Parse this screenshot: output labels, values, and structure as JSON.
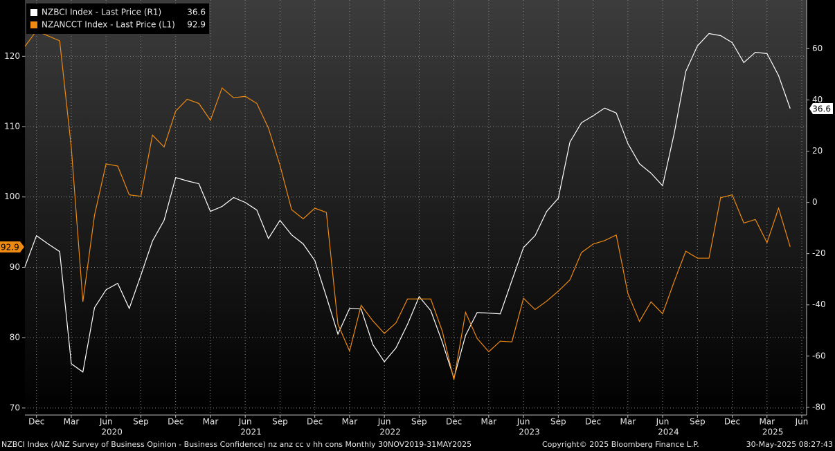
{
  "chart_data": {
    "type": "line",
    "x": [
      "2019-11",
      "2019-12",
      "2020-01",
      "2020-02",
      "2020-03",
      "2020-04",
      "2020-05",
      "2020-06",
      "2020-07",
      "2020-08",
      "2020-09",
      "2020-10",
      "2020-11",
      "2020-12",
      "2021-01",
      "2021-02",
      "2021-03",
      "2021-04",
      "2021-05",
      "2021-06",
      "2021-07",
      "2021-08",
      "2021-09",
      "2021-10",
      "2021-11",
      "2021-12",
      "2022-01",
      "2022-02",
      "2022-03",
      "2022-04",
      "2022-05",
      "2022-06",
      "2022-07",
      "2022-08",
      "2022-09",
      "2022-10",
      "2022-11",
      "2022-12",
      "2023-01",
      "2023-02",
      "2023-03",
      "2023-04",
      "2023-05",
      "2023-06",
      "2023-07",
      "2023-08",
      "2023-09",
      "2023-10",
      "2023-11",
      "2023-12",
      "2024-01",
      "2024-02",
      "2024-03",
      "2024-04",
      "2024-05",
      "2024-06",
      "2024-07",
      "2024-08",
      "2024-09",
      "2024-10",
      "2024-11",
      "2024-12",
      "2025-01",
      "2025-02",
      "2025-03",
      "2025-04",
      "2025-05"
    ],
    "xlim": [
      "2019-11",
      "2025-06"
    ],
    "xticks": [
      {
        "value": "2019-12",
        "label": "Dec"
      },
      {
        "value": "2020-03",
        "label": "Mar"
      },
      {
        "value": "2020-06",
        "label": "Jun"
      },
      {
        "value": "2020-09",
        "label": "Sep"
      },
      {
        "value": "2020-12",
        "label": "Dec"
      },
      {
        "value": "2021-03",
        "label": "Mar"
      },
      {
        "value": "2021-06",
        "label": "Jun"
      },
      {
        "value": "2021-09",
        "label": "Sep"
      },
      {
        "value": "2021-12",
        "label": "Dec"
      },
      {
        "value": "2022-03",
        "label": "Mar"
      },
      {
        "value": "2022-06",
        "label": "Jun"
      },
      {
        "value": "2022-09",
        "label": "Sep"
      },
      {
        "value": "2022-12",
        "label": "Dec"
      },
      {
        "value": "2023-03",
        "label": "Mar"
      },
      {
        "value": "2023-06",
        "label": "Jun"
      },
      {
        "value": "2023-09",
        "label": "Sep"
      },
      {
        "value": "2023-12",
        "label": "Dec"
      },
      {
        "value": "2024-03",
        "label": "Mar"
      },
      {
        "value": "2024-06",
        "label": "Jun"
      },
      {
        "value": "2024-09",
        "label": "Sep"
      },
      {
        "value": "2024-12",
        "label": "Dec"
      },
      {
        "value": "2025-03",
        "label": "Mar"
      },
      {
        "value": "2025-06",
        "label": "Jun"
      }
    ],
    "x_years": [
      "2020",
      "2021",
      "2022",
      "2023",
      "2024",
      "2025"
    ],
    "ylim": [
      69,
      128
    ],
    "yticks": [
      70,
      80,
      90,
      100,
      110,
      120
    ],
    "y2lim": [
      -83,
      79
    ],
    "y2ticks": [
      -80,
      -60,
      -40,
      -20,
      0,
      20,
      40,
      60
    ],
    "grid": true,
    "legend": "upper left",
    "series": [
      {
        "name": "NZBCI Index - Last Price (R1)",
        "color": "#ffffff",
        "axis": "y2",
        "values": [
          -25.1,
          -13.0,
          -16.2,
          -19.2,
          -63.0,
          -66.2,
          -41.1,
          -34.1,
          -31.6,
          -41.4,
          -28.4,
          -15.1,
          -7.0,
          9.7,
          8.4,
          7.3,
          -3.5,
          -1.6,
          1.9,
          0,
          -3.0,
          -14.1,
          -7.0,
          -12.7,
          -16.2,
          -22.7,
          -36.8,
          -51.4,
          -41.4,
          -41.6,
          -55.4,
          -62.2,
          -56.8,
          -47.6,
          -36.8,
          -42.2,
          -54.6,
          -68.6,
          -51.9,
          -43.0,
          -43.2,
          -43.5,
          -30.5,
          -17.6,
          -13.0,
          -3.5,
          1.6,
          23.5,
          31.1,
          33.8,
          36.8,
          34.9,
          23.0,
          15.1,
          11.4,
          6.5,
          27.0,
          51.1,
          61.1,
          65.9,
          65.1,
          62.4,
          54.6,
          58.6,
          58.1,
          49.5,
          36.6
        ]
      },
      {
        "name": "NZANCCT Index - Last Price (L1)",
        "color": "#ee8a12",
        "axis": "y",
        "values": [
          121.4,
          123.6,
          122.9,
          122.2,
          107.0,
          85.1,
          97.4,
          104.7,
          104.4,
          100.3,
          100.1,
          108.8,
          107.1,
          112.2,
          113.9,
          113.3,
          110.9,
          115.5,
          114.1,
          114.3,
          113.3,
          109.8,
          104.5,
          98.2,
          96.9,
          98.4,
          97.8,
          81.9,
          78.1,
          84.6,
          82.4,
          80.6,
          82.1,
          85.5,
          85.5,
          85.5,
          80.9,
          74.0,
          83.6,
          79.9,
          78.0,
          79.5,
          79.4,
          85.6,
          84.0,
          85.2,
          86.6,
          88.2,
          92.1,
          93.3,
          93.8,
          94.6,
          86.3,
          82.3,
          85.1,
          83.4,
          88.0,
          92.3,
          91.3,
          91.3,
          99.9,
          100.3,
          96.3,
          96.8,
          93.5,
          98.4,
          92.9
        ]
      }
    ]
  },
  "footer": {
    "description": "NZBCI Index (ANZ Survey of Business Opinion - Business Confidence) nz anz cc v hh cons  Monthly 30NOV2019-31MAY2025",
    "copyright": "Copyright© 2025 Bloomberg Finance L.P.",
    "timestamp": "30-May-2025 08:27:43"
  }
}
